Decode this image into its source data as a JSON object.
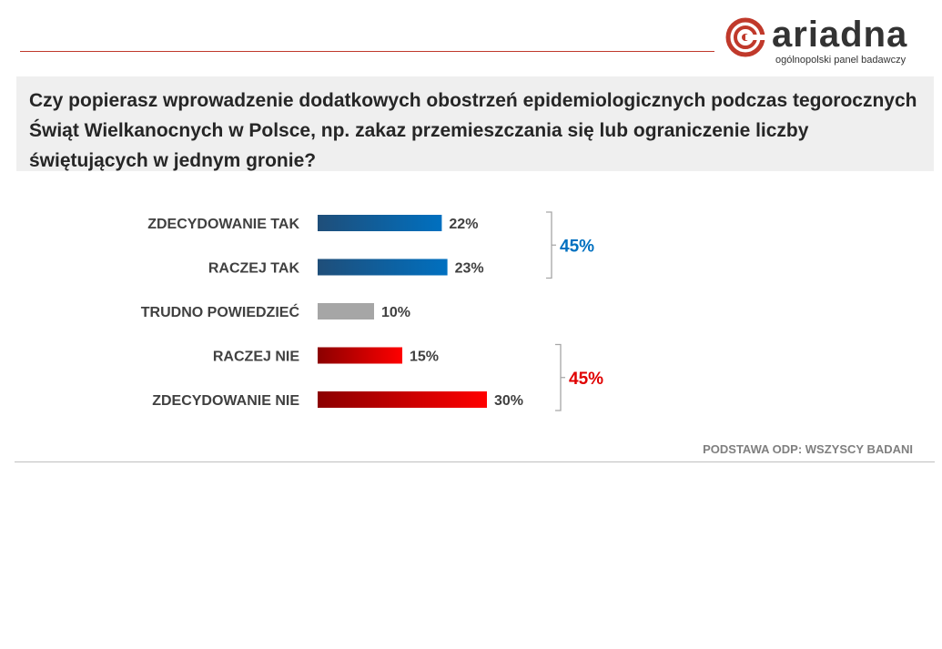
{
  "brand": {
    "name": "ariadna",
    "tagline": "ogólnopolski panel badawczy",
    "accent_color": "#c0392b",
    "icon": "ariadna-spiral-logo-icon"
  },
  "question": "Czy popierasz wprowadzenie dodatkowych obostrzeń epidemiologicznych podczas tegorocznych Świąt Wielkanocnych w Polsce, np. zakaz przemieszczania się lub ograniczenie liczby świętujących w jednym gronie?",
  "footnote": "PODSTAWA ODP: WSZYSCY BADANI",
  "chart_data": {
    "type": "bar",
    "orientation": "horizontal",
    "categories": [
      "ZDECYDOWANIE TAK",
      "RACZEJ TAK",
      "TRUDNO POWIEDZIEĆ",
      "RACZEJ NIE",
      "ZDECYDOWANIE NIE"
    ],
    "values": [
      22,
      23,
      10,
      15,
      30
    ],
    "value_labels": [
      "22%",
      "23%",
      "10%",
      "15%",
      "30%"
    ],
    "bar_colors": [
      [
        "#1f4e79",
        "#0070c0"
      ],
      [
        "#1f4e79",
        "#0070c0"
      ],
      [
        "#a6a6a6",
        "#a6a6a6"
      ],
      [
        "#8b0000",
        "#ff0000"
      ],
      [
        "#8b0000",
        "#ff0000"
      ]
    ],
    "groups": [
      {
        "label": "45%",
        "from": 0,
        "to": 1,
        "color": "#0070c0"
      },
      {
        "label": "45%",
        "from": 3,
        "to": 4,
        "color": "#e00000"
      }
    ],
    "xlim": [
      0,
      30
    ]
  }
}
